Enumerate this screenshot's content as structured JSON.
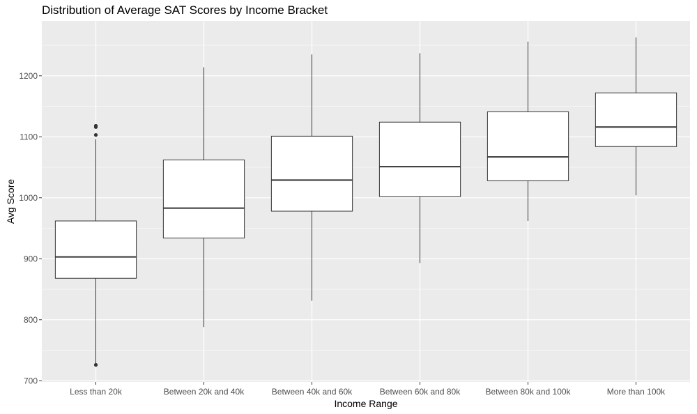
{
  "chart_data": {
    "type": "box",
    "title": "Distribution of Average SAT Scores by Income Bracket",
    "xlabel": "Income Range",
    "ylabel": "Avg Score",
    "ylim": [
      698,
      1290
    ],
    "yticks": [
      700,
      800,
      900,
      1000,
      1100,
      1200
    ],
    "grid": true,
    "categories": [
      "Less than 20k",
      "Between 20k and 40k",
      "Between 40k and 60k",
      "Between 60k and 80k",
      "Between 80k and 100k",
      "More than 100k"
    ],
    "boxes": [
      {
        "category": "Less than 20k",
        "whisker_low": 726,
        "q1": 868,
        "median": 903,
        "q3": 962,
        "whisker_high": 1096,
        "outliers": [
          726,
          1103,
          1116,
          1118
        ]
      },
      {
        "category": "Between 20k and 40k",
        "whisker_low": 788,
        "q1": 934,
        "median": 983,
        "q3": 1062,
        "whisker_high": 1214,
        "outliers": []
      },
      {
        "category": "Between 40k and 60k",
        "whisker_low": 831,
        "q1": 978,
        "median": 1029,
        "q3": 1101,
        "whisker_high": 1235,
        "outliers": []
      },
      {
        "category": "Between 60k and 80k",
        "whisker_low": 893,
        "q1": 1002,
        "median": 1051,
        "q3": 1124,
        "whisker_high": 1237,
        "outliers": []
      },
      {
        "category": "Between 80k and 100k",
        "whisker_low": 962,
        "q1": 1028,
        "median": 1067,
        "q3": 1141,
        "whisker_high": 1256,
        "outliers": []
      },
      {
        "category": "More than 100k",
        "whisker_low": 1004,
        "q1": 1084,
        "median": 1116,
        "q3": 1172,
        "whisker_high": 1263,
        "outliers": []
      }
    ],
    "colors": {
      "panel": "#ebebeb",
      "grid": "#ffffff",
      "box_fill": "#ffffff",
      "box_stroke": "#333333"
    }
  }
}
